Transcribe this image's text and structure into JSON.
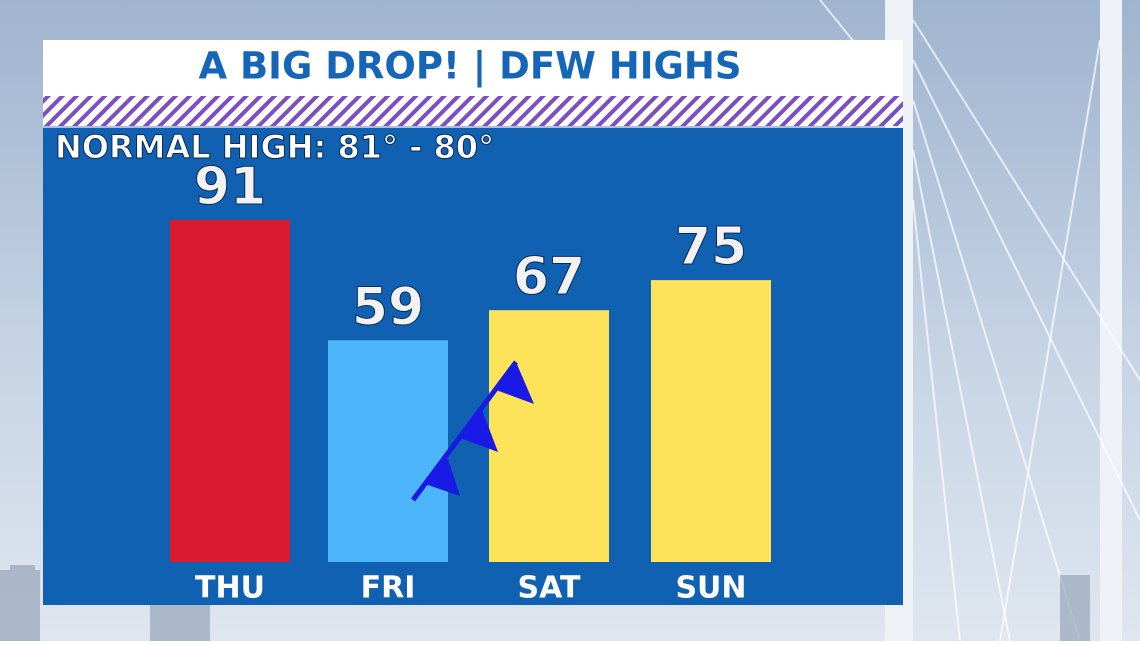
{
  "chart_data": {
    "type": "bar",
    "title": "A BIG DROP! | DFW HIGHS",
    "subtitle": "NORMAL  HIGH: 81° - 80°",
    "categories": [
      "THU",
      "FRI",
      "SAT",
      "SUN"
    ],
    "values": [
      91,
      59,
      67,
      75
    ],
    "colors": [
      "#d81b30",
      "#4db6fb",
      "#fde35a",
      "#fde35a"
    ]
  }
}
